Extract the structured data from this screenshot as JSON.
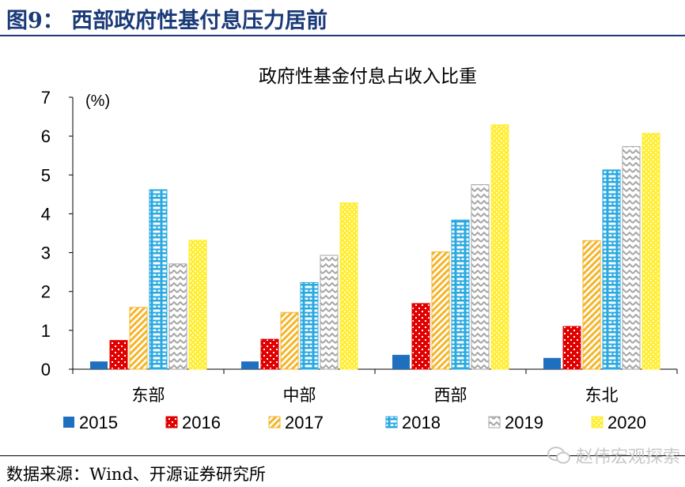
{
  "header": {
    "title": "图9：  西部政府性基付息压力居前"
  },
  "footer": {
    "source": "数据来源：Wind、开源证券研究所",
    "watermark": "赵伟宏观探索"
  },
  "chart_data": {
    "type": "bar",
    "title": "政府性基金付息占收入比重",
    "unit_label": "(%)",
    "ylim": [
      0,
      7
    ],
    "yticks": [
      "0",
      "1",
      "2",
      "3",
      "4",
      "5",
      "6",
      "7"
    ],
    "categories": [
      "东部",
      "中部",
      "西部",
      "东北"
    ],
    "legend_position": "bottom",
    "series": [
      {
        "name": "2015",
        "color": "#1f6fbf",
        "pattern": "solid",
        "values": [
          0.2,
          0.2,
          0.37,
          0.29
        ]
      },
      {
        "name": "2016",
        "color": "#e00000",
        "pattern": "dots",
        "values": [
          0.74,
          0.77,
          1.69,
          1.1
        ]
      },
      {
        "name": "2017",
        "color": "#f5b52a",
        "pattern": "diag",
        "values": [
          1.59,
          1.46,
          3.02,
          3.31
        ]
      },
      {
        "name": "2018",
        "color": "#2aa8e0",
        "pattern": "brick",
        "values": [
          4.62,
          2.23,
          3.84,
          5.13
        ]
      },
      {
        "name": "2019",
        "color": "#a6a6a6",
        "pattern": "zigzag",
        "values": [
          2.71,
          2.93,
          4.75,
          5.73
        ]
      },
      {
        "name": "2020",
        "color": "#ffee33",
        "pattern": "check",
        "values": [
          3.32,
          4.28,
          6.29,
          6.07
        ]
      }
    ]
  }
}
